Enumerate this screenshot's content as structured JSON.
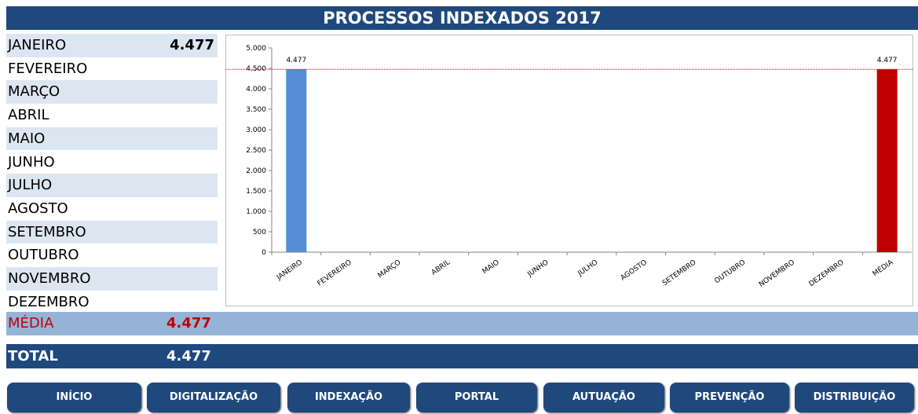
{
  "title": "PROCESSOS INDEXADOS 2017",
  "table": {
    "rows": [
      {
        "month": "JANEIRO",
        "value": "4.477"
      },
      {
        "month": "FEVEREIRO"
      },
      {
        "month": "MARÇO"
      },
      {
        "month": "ABRIL"
      },
      {
        "month": "MAIO"
      },
      {
        "month": "JUNHO"
      },
      {
        "month": "JULHO"
      },
      {
        "month": "AGOSTO"
      },
      {
        "month": "SETEMBRO"
      },
      {
        "month": "OUTUBRO"
      },
      {
        "month": "NOVEMBRO"
      },
      {
        "month": "DEZEMBRO"
      }
    ],
    "average": {
      "label": "MÉDIA",
      "value": "4.477"
    },
    "total": {
      "label": "TOTAL",
      "value": "4.477"
    }
  },
  "chart_data": {
    "type": "bar",
    "categories": [
      "JANEIRO",
      "FEVEREIRO",
      "MARÇO",
      "ABRIL",
      "MAIO",
      "JUNHO",
      "JULHO",
      "AGOSTO",
      "SETEMBRO",
      "OUTUBRO",
      "NOVEMBRO",
      "DEZEMBRO",
      "MÉDIA"
    ],
    "values": [
      4477,
      null,
      null,
      null,
      null,
      null,
      null,
      null,
      null,
      null,
      null,
      null,
      4477
    ],
    "value_labels": [
      "4.477",
      null,
      null,
      null,
      null,
      null,
      null,
      null,
      null,
      null,
      null,
      null,
      "4.477"
    ],
    "colors": [
      "#558ed5",
      "#558ed5",
      "#558ed5",
      "#558ed5",
      "#558ed5",
      "#558ed5",
      "#558ed5",
      "#558ed5",
      "#558ed5",
      "#558ed5",
      "#558ed5",
      "#558ed5",
      "#c00000"
    ],
    "reference_line": {
      "value": 4477,
      "color": "#c00000"
    },
    "ylim": [
      0,
      5000
    ],
    "yticks": [
      0,
      500,
      {
        "value": 1000,
        "label": "1.000"
      },
      {
        "value": 1500,
        "label": "1.500"
      },
      {
        "value": 2000,
        "label": "2.000"
      },
      {
        "value": 2500,
        "label": "2.500"
      },
      {
        "value": 3000,
        "label": "3.000"
      },
      {
        "value": 3500,
        "label": "3.500"
      },
      {
        "value": 4000,
        "label": "4.000"
      },
      {
        "value": 4500,
        "label": "4.500"
      },
      {
        "value": 5000,
        "label": "5.000"
      }
    ]
  },
  "nav": [
    "INÍCIO",
    "DIGITALIZAÇÃO",
    "INDEXAÇÃO",
    "PORTAL",
    "AUTUAÇÃO",
    "PREVENÇÃO",
    "DISTRIBUIÇÃO"
  ]
}
